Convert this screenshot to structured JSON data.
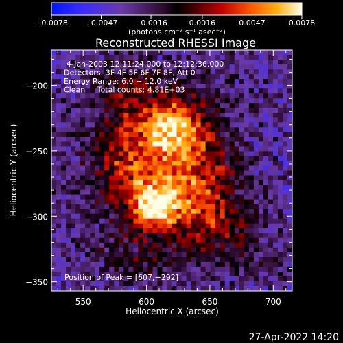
{
  "chart_data": {
    "type": "heatmap",
    "title": "Reconstructed RHESSI Image",
    "xlabel": "Heliocentric X (arcsec)",
    "ylabel": "Heliocentric Y (arcsec)",
    "xlim": [
      525,
      715
    ],
    "ylim": [
      -357,
      -173
    ],
    "xticks": [
      550,
      600,
      650,
      700
    ],
    "yticks": [
      -200,
      -250,
      -300,
      -350
    ],
    "colorbar": {
      "ticks": [
        -0.0078,
        -0.0047,
        -0.0016,
        0.0016,
        0.0047,
        0.0078
      ],
      "tick_labels": [
        "−0.0078",
        "−0.0047",
        "−0.0016",
        "0.0016",
        "0.0047",
        "0.0078"
      ],
      "unit_label": "(photons cm⁻² s⁻¹ asec⁻²)",
      "range": [
        -0.0078,
        0.0078
      ]
    },
    "annotations": [
      " 4-Jan-2003 12:11:24.000 to 12:12:36.000",
      "Detectors: 3F 4F 5F 6F 7F 8F, Att 0",
      "Energy Range: 6.0 − 12.0 keV",
      "Clean     Total counts: 4.81E+03"
    ],
    "peak": {
      "label": "Position of Peak = [607,−292]",
      "x": 607,
      "y": -292
    },
    "sources": [
      {
        "x": 607,
        "y": -292,
        "sx": 13,
        "sy": 11,
        "amp": 0.0078
      },
      {
        "x": 620,
        "y": -230,
        "sx": 14,
        "sy": 12,
        "amp": 0.0064
      },
      {
        "x": 585,
        "y": -258,
        "sx": 24,
        "sy": 28,
        "amp": 0.0042
      },
      {
        "x": 640,
        "y": -270,
        "sx": 22,
        "sy": 38,
        "amp": 0.0046
      },
      {
        "x": 612,
        "y": -262,
        "sx": 30,
        "sy": 40,
        "amp": 0.003
      },
      {
        "x": 585,
        "y": -205,
        "sx": 20,
        "sy": 18,
        "amp": 0.0024
      },
      {
        "x": 660,
        "y": -305,
        "sx": 18,
        "sy": 18,
        "amp": 0.0026
      },
      {
        "x": 590,
        "y": -330,
        "sx": 22,
        "sy": 14,
        "amp": 0.0018
      },
      {
        "x": 690,
        "y": -330,
        "sx": 16,
        "sy": 14,
        "amp": 0.0014
      }
    ],
    "background": -0.003
  },
  "timestamp": "27-Apr-2022 14:20"
}
